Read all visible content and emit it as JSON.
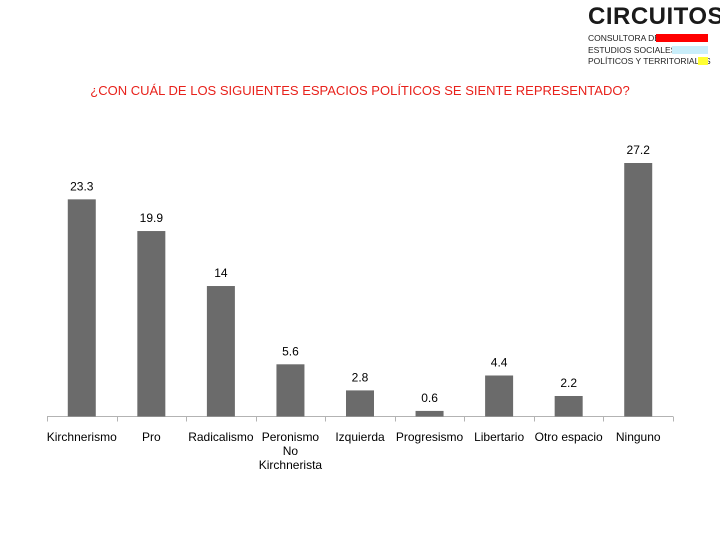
{
  "logo": {
    "word": "CIRCUITOS",
    "lines": [
      "CONSULTORA DE",
      "ESTUDIOS SOCIALES,",
      "POLÍTICOS Y TERRITORIALES"
    ],
    "colors": [
      "#ff0000",
      "#c9eefa",
      "#ffff33"
    ]
  },
  "chart_data": {
    "type": "bar",
    "title": "¿CON CUÁL DE LOS SIGUIENTES ESPACIOS POLÍTICOS SE SIENTE REPRESENTADO?",
    "categories": [
      "Kirchnerismo",
      "Pro",
      "Radicalismo",
      "Peronismo No Kirchnerista",
      "Izquierda",
      "Progresismo",
      "Libertario",
      "Otro espacio",
      "Ninguno"
    ],
    "category_lines": [
      [
        "Kirchnerismo"
      ],
      [
        "Pro"
      ],
      [
        "Radicalismo"
      ],
      [
        "Peronismo",
        "No",
        "Kirchnerista"
      ],
      [
        "Izquierda"
      ],
      [
        "Progresismo"
      ],
      [
        "Libertario"
      ],
      [
        "Otro espacio"
      ],
      [
        "Ninguno"
      ]
    ],
    "values": [
      23.3,
      19.9,
      14,
      5.6,
      2.8,
      0.6,
      4.4,
      2.2,
      27.2
    ],
    "value_labels": [
      "23.3",
      "19.9",
      "14",
      "5.6",
      "2.8",
      "0.6",
      "4.4",
      "2.2",
      "27.2"
    ],
    "xlabel": "",
    "ylabel": "",
    "ylim": [
      0,
      27.2
    ],
    "grid": false,
    "legend": "none",
    "bar_color": "#6b6b6b",
    "title_color": "#e8211b"
  }
}
